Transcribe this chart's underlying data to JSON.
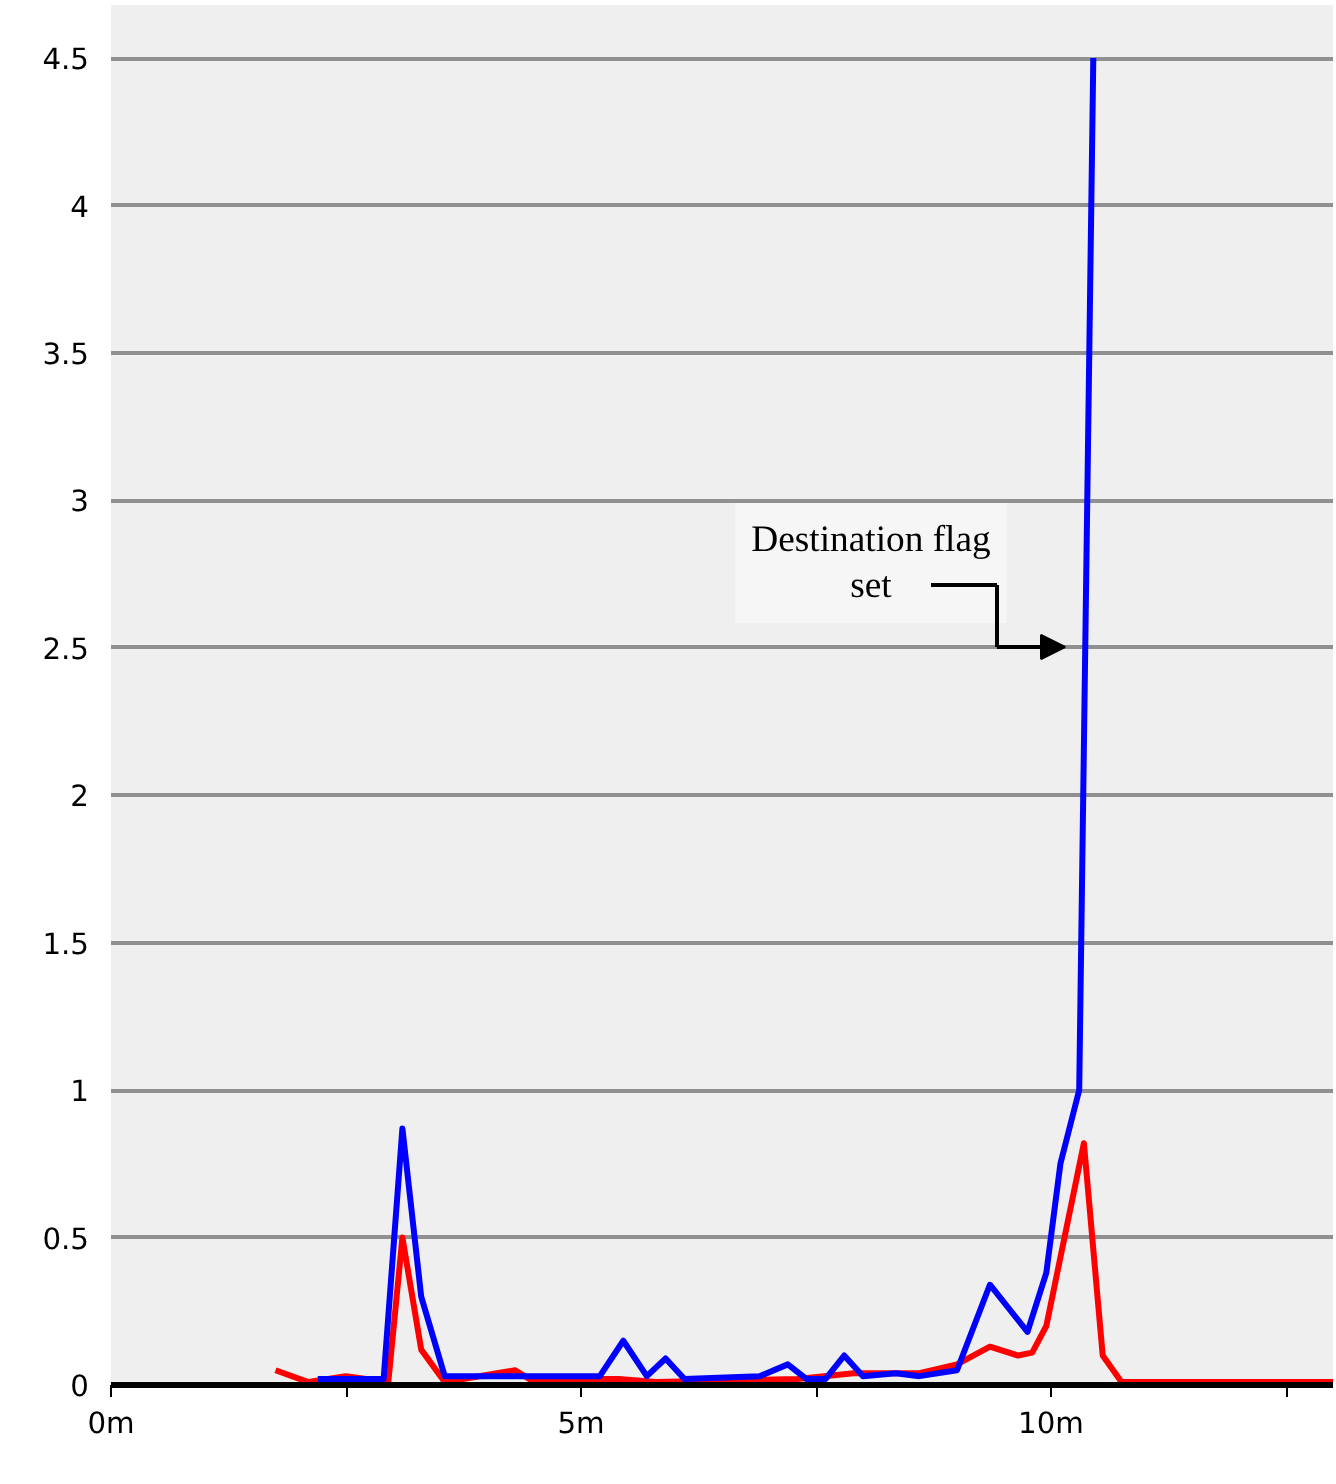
{
  "chart_data": {
    "type": "line",
    "xlim": [
      0,
      13
    ],
    "ylim": [
      0,
      4.68
    ],
    "xticks": [
      {
        "value": 0,
        "label": "0m"
      },
      {
        "value": 2.5,
        "label": null
      },
      {
        "value": 5,
        "label": "5m"
      },
      {
        "value": 7.5,
        "label": null
      },
      {
        "value": 10,
        "label": "10m"
      },
      {
        "value": 12.5,
        "label": null
      }
    ],
    "yticks": [
      0,
      0.5,
      1,
      1.5,
      2,
      2.5,
      3,
      3.5,
      4,
      4.5
    ],
    "grid": "y",
    "marker": "none",
    "line_style": "solid",
    "series": [
      {
        "color": "#ff0000",
        "x": [
          1.75,
          2.1,
          2.5,
          2.95,
          3.1,
          3.3,
          3.55,
          4.3,
          4.5,
          5.2,
          5.4,
          5.8,
          7.3,
          7.9,
          8.6,
          9.0,
          9.35,
          9.65,
          9.8,
          9.95,
          10.35,
          10.55,
          10.75,
          11.55,
          13.0
        ],
        "values": [
          0.05,
          0.01,
          0.03,
          0.01,
          0.5,
          0.12,
          0.01,
          0.05,
          0.01,
          0.02,
          0.02,
          0.01,
          0.02,
          0.04,
          0.04,
          0.07,
          0.13,
          0.1,
          0.11,
          0.2,
          0.82,
          0.1,
          0.01,
          0.01,
          0.01
        ]
      },
      {
        "color": "#0000ff",
        "x": [
          2.2,
          2.9,
          3.1,
          3.3,
          3.55,
          3.9,
          4.3,
          5.2,
          5.45,
          5.7,
          5.9,
          6.1,
          6.9,
          7.2,
          7.4,
          7.6,
          7.8,
          8.0,
          8.35,
          8.6,
          9.0,
          9.35,
          9.75,
          9.95,
          10.1,
          10.3,
          10.45
        ],
        "values": [
          0.02,
          0.02,
          0.87,
          0.3,
          0.03,
          0.03,
          0.03,
          0.03,
          0.15,
          0.03,
          0.09,
          0.02,
          0.03,
          0.07,
          0.02,
          0.02,
          0.1,
          0.03,
          0.04,
          0.03,
          0.05,
          0.34,
          0.18,
          0.38,
          0.75,
          1.0,
          4.5
        ]
      }
    ],
    "annotations": [
      "Destination flag set"
    ]
  }
}
